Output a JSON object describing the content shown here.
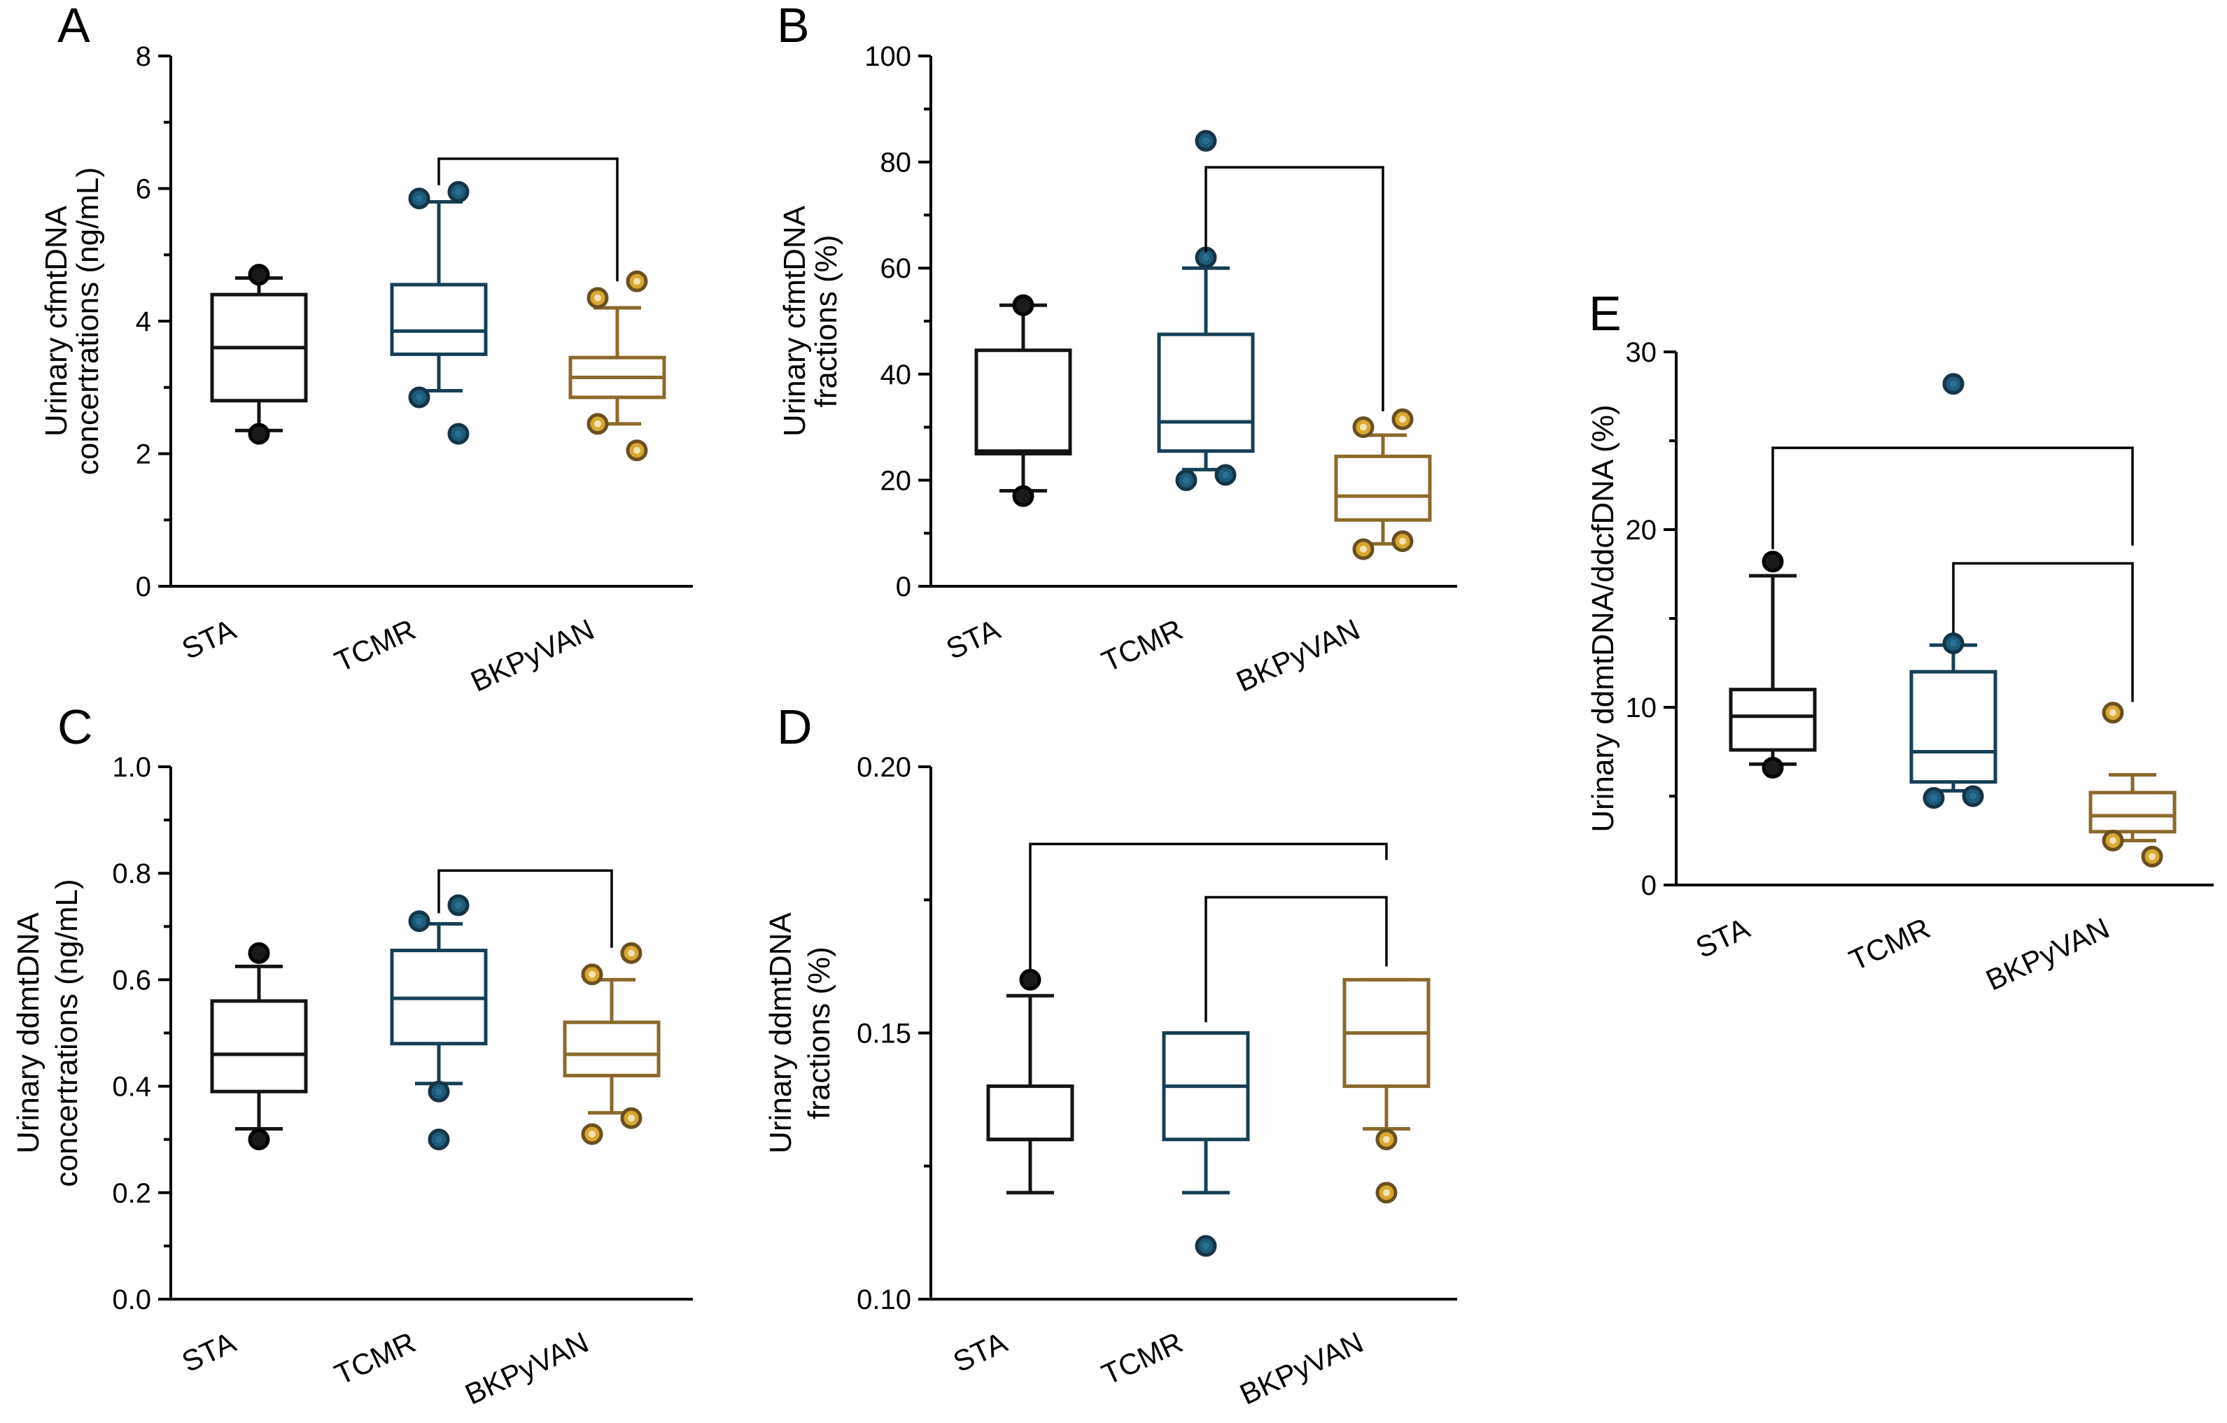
{
  "colors": {
    "STA": "#141414",
    "TCMR": "#173f56",
    "BKPyVAN": "#8a6a2c",
    "outlier_BKPyVAN": "#d9a72e",
    "outlier_TCMR": "#1d5b7a"
  },
  "chart_data": [
    {
      "panel": "A",
      "type": "box",
      "ylabel_lines": [
        "Urinary cfmtDNA",
        "concertrations  (ng/mL)"
      ],
      "ylim": [
        0,
        8
      ],
      "yticks": [
        0,
        2,
        4,
        6,
        8
      ],
      "ytick_labels": [
        "0",
        "2",
        "4",
        "6",
        "8"
      ],
      "categories": [
        "STA",
        "TCMR",
        "BKPyVAN"
      ],
      "boxes": [
        {
          "group": "STA",
          "q1": 2.8,
          "median": 3.6,
          "q3": 4.4,
          "whisker_low": 2.35,
          "whisker_high": 4.65,
          "outliers": [
            4.7,
            2.3
          ]
        },
        {
          "group": "TCMR",
          "q1": 3.5,
          "median": 3.85,
          "q3": 4.55,
          "whisker_low": 2.95,
          "whisker_high": 5.8,
          "outliers": [
            5.85,
            5.95,
            2.85,
            2.3
          ]
        },
        {
          "group": "BKPyVAN",
          "q1": 2.85,
          "median": 3.15,
          "q3": 3.45,
          "whisker_low": 2.45,
          "whisker_high": 4.2,
          "outliers": [
            4.35,
            4.6,
            2.45,
            2.05
          ]
        }
      ],
      "brackets": [
        {
          "from": "TCMR",
          "to": "BKPyVAN",
          "y": 6.45,
          "left_end": 6.05,
          "right_end": 4.6
        }
      ]
    },
    {
      "panel": "B",
      "type": "box",
      "ylabel_lines": [
        "Urinary cfmtDNA",
        "fractions (%)"
      ],
      "ylim": [
        0,
        100
      ],
      "yticks": [
        0,
        20,
        40,
        60,
        80,
        100
      ],
      "ytick_labels": [
        "0",
        "20",
        "40",
        "60",
        "80",
        "100"
      ],
      "categories": [
        "STA",
        "TCMR",
        "BKPyVAN"
      ],
      "boxes": [
        {
          "group": "STA",
          "q1": 25,
          "median": 25.5,
          "q3": 44.5,
          "whisker_low": 18,
          "whisker_high": 53,
          "outliers": [
            53,
            17
          ]
        },
        {
          "group": "TCMR",
          "q1": 25.5,
          "median": 31,
          "q3": 47.5,
          "whisker_low": 22,
          "whisker_high": 60,
          "outliers": [
            84,
            62,
            20,
            21
          ]
        },
        {
          "group": "BKPyVAN",
          "q1": 12.5,
          "median": 17,
          "q3": 24.5,
          "whisker_low": 8,
          "whisker_high": 28.5,
          "outliers": [
            30,
            31.5,
            7,
            8.5
          ]
        }
      ],
      "brackets": [
        {
          "from": "TCMR",
          "to": "BKPyVAN",
          "y": 79,
          "left_end": 63,
          "right_end": 33
        }
      ]
    },
    {
      "panel": "C",
      "type": "box",
      "ylabel_lines": [
        "Urinary ddmtDNA",
        "concertrations  (ng/mL)"
      ],
      "ylim": [
        0,
        1
      ],
      "yticks": [
        0,
        0.2,
        0.4,
        0.6,
        0.8,
        1.0
      ],
      "ytick_labels": [
        "0.0",
        "0.2",
        "0.4",
        "0.6",
        "0.8",
        "1.0"
      ],
      "categories": [
        "STA",
        "TCMR",
        "BKPyVAN"
      ],
      "boxes": [
        {
          "group": "STA",
          "q1": 0.39,
          "median": 0.46,
          "q3": 0.56,
          "whisker_low": 0.32,
          "whisker_high": 0.625,
          "outliers": [
            0.65,
            0.3
          ]
        },
        {
          "group": "TCMR",
          "q1": 0.48,
          "median": 0.565,
          "q3": 0.655,
          "whisker_low": 0.405,
          "whisker_high": 0.705,
          "outliers": [
            0.71,
            0.74,
            0.39,
            0.3
          ]
        },
        {
          "group": "BKPyVAN",
          "q1": 0.42,
          "median": 0.46,
          "q3": 0.52,
          "whisker_low": 0.35,
          "whisker_high": 0.6,
          "outliers": [
            0.61,
            0.65,
            0.31,
            0.34
          ]
        }
      ],
      "brackets": [
        {
          "from": "TCMR",
          "to": "BKPyVAN",
          "y": 0.805,
          "left_end": 0.725,
          "right_end": 0.66
        }
      ]
    },
    {
      "panel": "D",
      "type": "box",
      "ylabel_lines": [
        "Urinary ddmtDNA",
        "fractions (%)"
      ],
      "ylim": [
        0.1,
        0.2
      ],
      "yticks": [
        0.1,
        0.15,
        0.2
      ],
      "ytick_labels": [
        "0.10",
        "0.15",
        "0.20"
      ],
      "minor_ticks": [
        0.125,
        0.175
      ],
      "categories": [
        "STA",
        "TCMR",
        "BKPyVAN"
      ],
      "boxes": [
        {
          "group": "STA",
          "q1": 0.13,
          "median": 0.13,
          "q3": 0.14,
          "whisker_low": 0.12,
          "whisker_high": 0.157,
          "outliers": [
            0.16
          ]
        },
        {
          "group": "TCMR",
          "q1": 0.13,
          "median": 0.14,
          "q3": 0.15,
          "whisker_low": 0.12,
          "whisker_high": 0.15,
          "outliers": [
            0.11
          ]
        },
        {
          "group": "BKPyVAN",
          "q1": 0.14,
          "median": 0.15,
          "q3": 0.16,
          "whisker_low": 0.132,
          "whisker_high": 0.16,
          "outliers": [
            0.13,
            0.12
          ]
        }
      ],
      "brackets": [
        {
          "from": "STA",
          "to": "BKPyVAN",
          "y": 0.1855,
          "left_end": 0.162,
          "right_end": 0.1825
        },
        {
          "from": "TCMR",
          "to": "BKPyVAN",
          "y": 0.1755,
          "left_end": 0.152,
          "right_end": 0.1625
        }
      ]
    },
    {
      "panel": "E",
      "type": "box",
      "ylabel_lines": [
        "Urinary ddmtDNA/ddcfDNA (%)"
      ],
      "ylim": [
        0,
        30
      ],
      "yticks": [
        0,
        10,
        20,
        30
      ],
      "ytick_labels": [
        "0",
        "10",
        "20",
        "30"
      ],
      "minor_ticks": [
        5,
        15,
        25
      ],
      "categories": [
        "STA",
        "TCMR",
        "BKPyVAN"
      ],
      "boxes": [
        {
          "group": "STA",
          "q1": 7.6,
          "median": 9.5,
          "q3": 11,
          "whisker_low": 6.8,
          "whisker_high": 17.4,
          "outliers": [
            18.2,
            6.6
          ]
        },
        {
          "group": "TCMR",
          "q1": 5.8,
          "median": 7.5,
          "q3": 12,
          "whisker_low": 5.3,
          "whisker_high": 13.5,
          "outliers": [
            28.2,
            13.6,
            4.9,
            5
          ]
        },
        {
          "group": "BKPyVAN",
          "q1": 3,
          "median": 3.9,
          "q3": 5.2,
          "whisker_low": 2.5,
          "whisker_high": 6.2,
          "outliers": [
            9.7,
            1.6,
            2.5
          ]
        }
      ],
      "brackets": [
        {
          "from": "STA",
          "to": "BKPyVAN",
          "y": 24.6,
          "left_end": 18.9,
          "right_end": 19.1
        },
        {
          "from": "TCMR",
          "to": "BKPyVAN",
          "y": 18.1,
          "left_end": 14.2,
          "right_end": 10.3
        }
      ]
    }
  ]
}
